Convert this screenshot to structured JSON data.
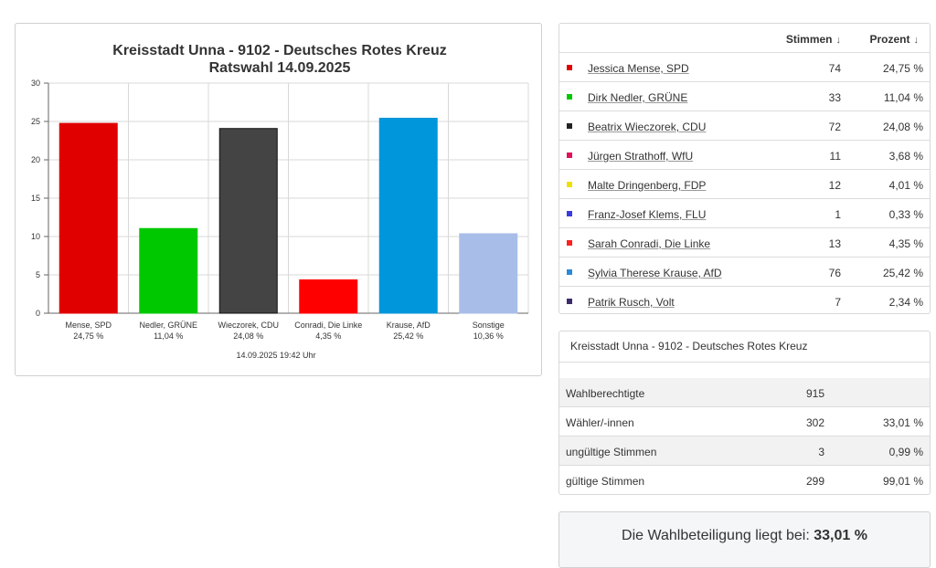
{
  "chart_data": {
    "type": "bar",
    "title": "Kreisstadt Unna - 9102 - Deutsches Rotes Kreuz",
    "subtitle": "Ratswahl 14.09.2025",
    "categories": [
      "Mense, SPD",
      "Nedler, GRÜNE",
      "Wieczorek, CDU",
      "Conradi, Die Linke",
      "Krause, AfD",
      "Sonstige"
    ],
    "value_labels": [
      "24,75 %",
      "11,04 %",
      "24,08 %",
      "4,35 %",
      "25,42 %",
      "10,36 %"
    ],
    "values": [
      24.75,
      11.04,
      24.08,
      4.35,
      25.42,
      10.36
    ],
    "colors": [
      "#e00000",
      "#00c800",
      "#444444",
      "#ff0000",
      "#0096dc",
      "#a8bde8"
    ],
    "ylim": [
      0,
      30
    ],
    "yticks": [
      0,
      5,
      10,
      15,
      20,
      25,
      30
    ],
    "grid": true,
    "footer": "14.09.2025 19:42 Uhr"
  },
  "results": {
    "header": {
      "stimmen": "Stimmen",
      "prozent": "Prozent",
      "sort_arrow": "↓"
    },
    "rows": [
      {
        "name": "Jessica Mense, SPD",
        "votes": "74",
        "pct": "24,75 %",
        "color": "#e00000"
      },
      {
        "name": "Dirk Nedler, GRÜNE",
        "votes": "33",
        "pct": "11,04 %",
        "color": "#00c800"
      },
      {
        "name": "Beatrix Wieczorek, CDU",
        "votes": "72",
        "pct": "24,08 %",
        "color": "#222222"
      },
      {
        "name": "Jürgen Strathoff, WfU",
        "votes": "11",
        "pct": "3,68 %",
        "color": "#e0105a"
      },
      {
        "name": "Malte Dringenberg, FDP",
        "votes": "12",
        "pct": "4,01 %",
        "color": "#f0e000"
      },
      {
        "name": "Franz-Josef Klems, FLU",
        "votes": "1",
        "pct": "0,33 %",
        "color": "#3a3ae0"
      },
      {
        "name": "Sarah Conradi, Die Linke",
        "votes": "13",
        "pct": "4,35 %",
        "color": "#ff2020"
      },
      {
        "name": "Sylvia Therese Krause, AfD",
        "votes": "76",
        "pct": "25,42 %",
        "color": "#2a8ad8"
      },
      {
        "name": "Patrik Rusch, Volt",
        "votes": "7",
        "pct": "2,34 %",
        "color": "#3a2a6a"
      }
    ]
  },
  "summary": {
    "title": "Kreisstadt Unna - 9102 - Deutsches Rotes Kreuz",
    "rows": [
      {
        "label": "Wahlberechtigte",
        "count": "915",
        "pct": ""
      },
      {
        "label": "Wähler/-innen",
        "count": "302",
        "pct": "33,01 %"
      },
      {
        "label": "ungültige Stimmen",
        "count": "3",
        "pct": "0,99 %"
      },
      {
        "label": "gültige Stimmen",
        "count": "299",
        "pct": "99,01 %"
      }
    ]
  },
  "turnout": {
    "text": "Die Wahlbeteiligung liegt bei:",
    "value": "33,01 %"
  }
}
